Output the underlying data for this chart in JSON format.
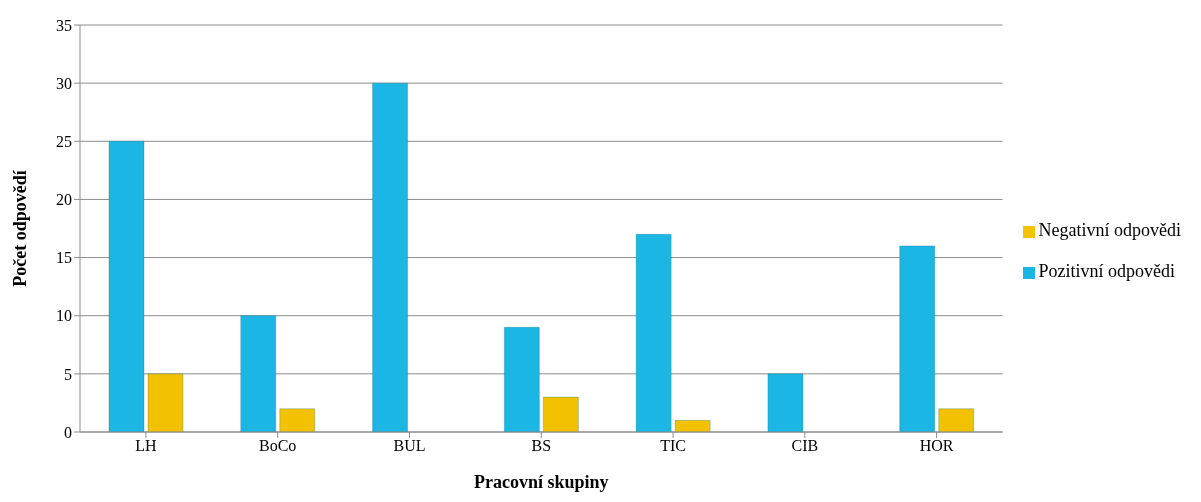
{
  "chart_data": {
    "type": "bar",
    "xlabel": "Pracovní skupiny",
    "ylabel": "Počet odpovědí",
    "categories": [
      "LH",
      "BoCo",
      "BUL",
      "BS",
      "TIC",
      "CIB",
      "HOR"
    ],
    "series": [
      {
        "name": "Pozitivní odpovědi",
        "color": "#1cb6e4",
        "values": [
          25,
          10,
          30,
          9,
          17,
          5,
          16
        ]
      },
      {
        "name": "Negativní odpovědi",
        "color": "#f2c200",
        "values": [
          5,
          2,
          0,
          3,
          1,
          0,
          2
        ]
      }
    ],
    "ylim": [
      0,
      35
    ],
    "yticks": [
      0,
      5,
      10,
      15,
      20,
      25,
      30,
      35
    ],
    "grid": "y",
    "legend": "right"
  }
}
